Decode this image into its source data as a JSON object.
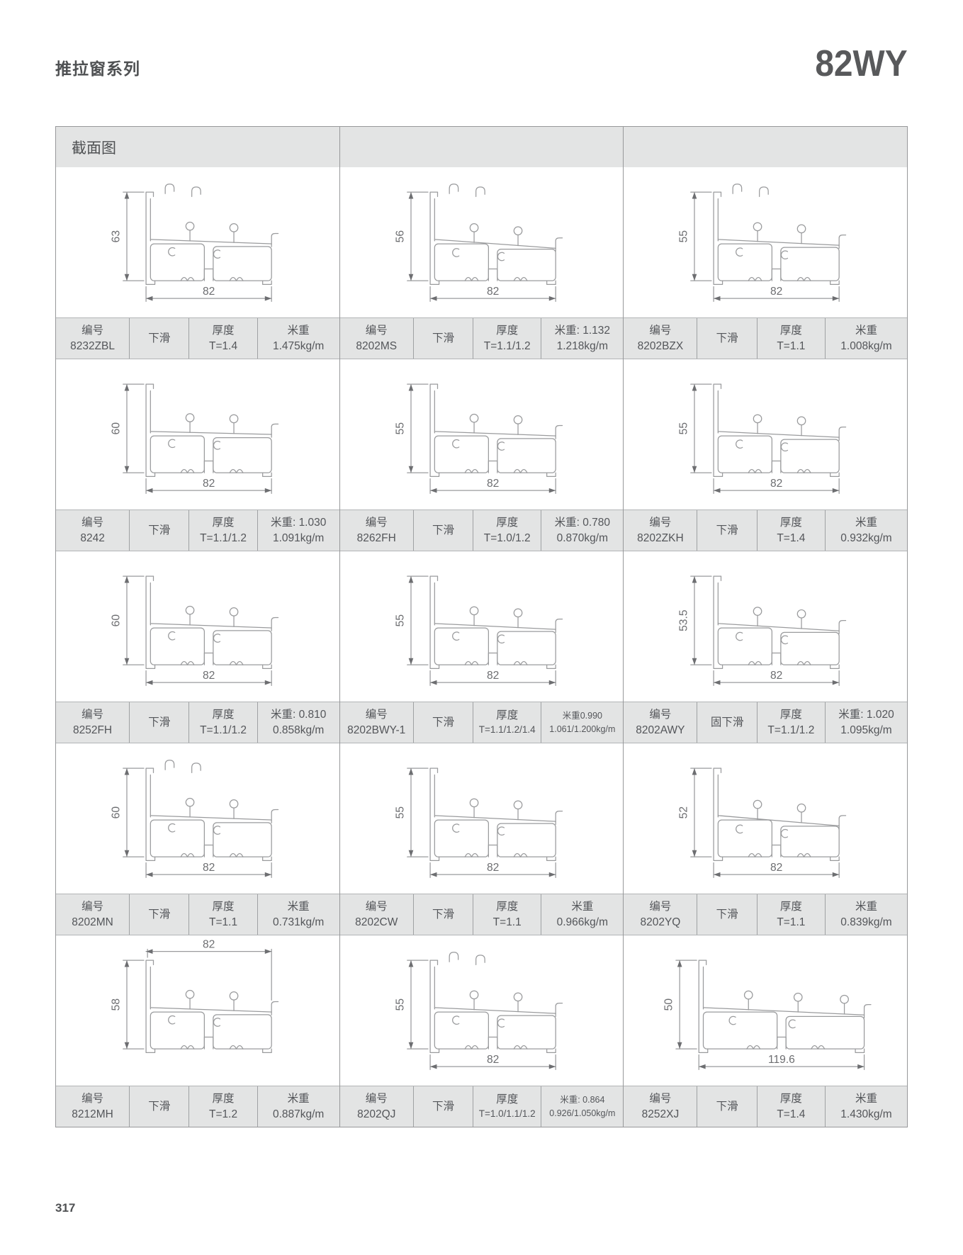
{
  "page": {
    "series_title": "推拉窗系列",
    "model": "82WY",
    "section_header": "截面图",
    "page_number": "317"
  },
  "labels": {
    "code": "编号",
    "thickness": "厚度"
  },
  "cells": [
    {
      "code": "8232ZBL",
      "type": "下滑",
      "thickness": "T=1.4",
      "weight_line1": "米重",
      "weight_line2": "1.475kg/m",
      "weight_small": false,
      "dim_h": "63",
      "dim_w": "82",
      "dim_w_pos": "bottom",
      "shape": {
        "slope": 6,
        "pins": 2,
        "wide": false,
        "hooks": true
      }
    },
    {
      "code": "8202MS",
      "type": "下滑",
      "thickness": "T=1.1/1.2",
      "weight_line1": "米重: 1.132",
      "weight_line2": "1.218kg/m",
      "weight_small": false,
      "dim_h": "56",
      "dim_w": "82",
      "dim_w_pos": "bottom",
      "shape": {
        "slope": 12,
        "pins": 2,
        "wide": false,
        "hooks": true
      }
    },
    {
      "code": "8202BZX",
      "type": "下滑",
      "thickness": "T=1.1",
      "weight_line1": "米重",
      "weight_line2": "1.008kg/m",
      "weight_small": false,
      "dim_h": "55",
      "dim_w": "82",
      "dim_w_pos": "bottom",
      "shape": {
        "slope": 8,
        "pins": 2,
        "wide": false,
        "hooks": true
      }
    },
    {
      "code": "8242",
      "type": "下滑",
      "thickness": "T=1.1/1.2",
      "weight_line1": "米重: 1.030",
      "weight_line2": "1.091kg/m",
      "weight_small": false,
      "dim_h": "60",
      "dim_w": "82",
      "dim_w_pos": "bottom",
      "shape": {
        "slope": 4,
        "pins": 2,
        "wide": false,
        "hooks": false
      }
    },
    {
      "code": "8262FH",
      "type": "下滑",
      "thickness": "T=1.0/1.2",
      "weight_line1": "米重: 0.780",
      "weight_line2": "0.870kg/m",
      "weight_small": false,
      "dim_h": "55",
      "dim_w": "82",
      "dim_w_pos": "bottom",
      "shape": {
        "slope": 6,
        "pins": 2,
        "wide": false,
        "hooks": false
      }
    },
    {
      "code": "8202ZKH",
      "type": "下滑",
      "thickness": "T=1.4",
      "weight_line1": "米重",
      "weight_line2": "0.932kg/m",
      "weight_small": false,
      "dim_h": "55",
      "dim_w": "82",
      "dim_w_pos": "bottom",
      "shape": {
        "slope": 8,
        "pins": 2,
        "wide": false,
        "hooks": false
      }
    },
    {
      "code": "8252FH",
      "type": "下滑",
      "thickness": "T=1.1/1.2",
      "weight_line1": "米重: 0.810",
      "weight_line2": "0.858kg/m",
      "weight_small": false,
      "dim_h": "60",
      "dim_w": "82",
      "dim_w_pos": "bottom",
      "shape": {
        "slope": 6,
        "pins": 2,
        "wide": false,
        "hooks": false
      }
    },
    {
      "code": "8202BWY-1",
      "type": "下滑",
      "thickness": "T=1.1/1.2/1.4",
      "weight_line1": "米重0.990",
      "weight_line2": "1.061/1.200kg/m",
      "weight_small": true,
      "dim_h": "55",
      "dim_w": "82",
      "dim_w_pos": "bottom",
      "shape": {
        "slope": 8,
        "pins": 2,
        "wide": false,
        "hooks": false
      }
    },
    {
      "code": "8202AWY",
      "type": "固下滑",
      "thickness": "T=1.1/1.2",
      "weight_line1": "米重: 1.020",
      "weight_line2": "1.095kg/m",
      "weight_small": false,
      "dim_h": "53.5",
      "dim_w": "82",
      "dim_w_pos": "bottom",
      "shape": {
        "slope": 10,
        "pins": 2,
        "wide": false,
        "hooks": false
      }
    },
    {
      "code": "8202MN",
      "type": "下滑",
      "thickness": "T=1.1",
      "weight_line1": "米重",
      "weight_line2": "0.731kg/m",
      "weight_small": false,
      "dim_h": "60",
      "dim_w": "82",
      "dim_w_pos": "bottom",
      "shape": {
        "slope": 6,
        "pins": 2,
        "wide": false,
        "hooks": true
      }
    },
    {
      "code": "8202CW",
      "type": "下滑",
      "thickness": "T=1.1",
      "weight_line1": "米重",
      "weight_line2": "0.966kg/m",
      "weight_small": false,
      "dim_h": "55",
      "dim_w": "82",
      "dim_w_pos": "bottom",
      "shape": {
        "slope": 8,
        "pins": 2,
        "wide": false,
        "hooks": false
      }
    },
    {
      "code": "8202YQ",
      "type": "下滑",
      "thickness": "T=1.1",
      "weight_line1": "米重",
      "weight_line2": "0.839kg/m",
      "weight_small": false,
      "dim_h": "52",
      "dim_w": "82",
      "dim_w_pos": "bottom",
      "shape": {
        "slope": 14,
        "pins": 2,
        "wide": false,
        "hooks": false
      }
    },
    {
      "code": "8212MH",
      "type": "下滑",
      "thickness": "T=1.2",
      "weight_line1": "米重",
      "weight_line2": "0.887kg/m",
      "weight_small": false,
      "dim_h": "58",
      "dim_w": "82",
      "dim_w_pos": "top",
      "shape": {
        "slope": 6,
        "pins": 2,
        "wide": false,
        "hooks": false
      }
    },
    {
      "code": "8202QJ",
      "type": "下滑",
      "thickness": "T=1.0/1.1/1.2",
      "weight_line1": "米重: 0.864",
      "weight_line2": "0.926/1.050kg/m",
      "weight_small": true,
      "dim_h": "55",
      "dim_w": "82",
      "dim_w_pos": "bottom",
      "shape": {
        "slope": 8,
        "pins": 2,
        "wide": false,
        "hooks": true
      }
    },
    {
      "code": "8252XJ",
      "type": "下滑",
      "thickness": "T=1.4",
      "weight_line1": "米重",
      "weight_line2": "1.430kg/m",
      "weight_small": false,
      "dim_h": "50",
      "dim_w": "119.6",
      "dim_w_pos": "bottom",
      "shape": {
        "slope": 10,
        "pins": 3,
        "wide": true,
        "hooks": false
      }
    }
  ]
}
